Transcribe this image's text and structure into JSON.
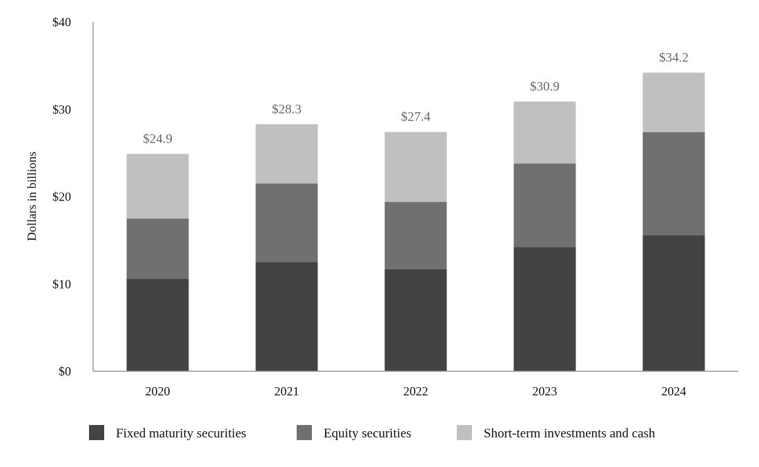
{
  "chart_data": {
    "type": "bar",
    "stacked": true,
    "categories": [
      "2020",
      "2021",
      "2022",
      "2023",
      "2024"
    ],
    "series": [
      {
        "name": "Fixed maturity securities",
        "color": "#434343",
        "values": [
          10.6,
          12.5,
          11.7,
          14.2,
          15.6
        ]
      },
      {
        "name": "Equity securities",
        "color": "#707070",
        "values": [
          6.9,
          9.0,
          7.7,
          9.6,
          11.8
        ]
      },
      {
        "name": "Short-term investments and cash",
        "color": "#c0c0c0",
        "values": [
          7.4,
          6.8,
          8.0,
          7.1,
          6.8
        ]
      }
    ],
    "totals": [
      "$24.9",
      "$28.3",
      "$27.4",
      "$30.9",
      "$34.2"
    ],
    "ylabel": "Dollars in billions",
    "yticks": [
      "$0",
      "$10",
      "$20",
      "$30",
      "$40"
    ],
    "ylim": [
      0,
      40
    ],
    "legend_position": "bottom",
    "grid": false
  }
}
